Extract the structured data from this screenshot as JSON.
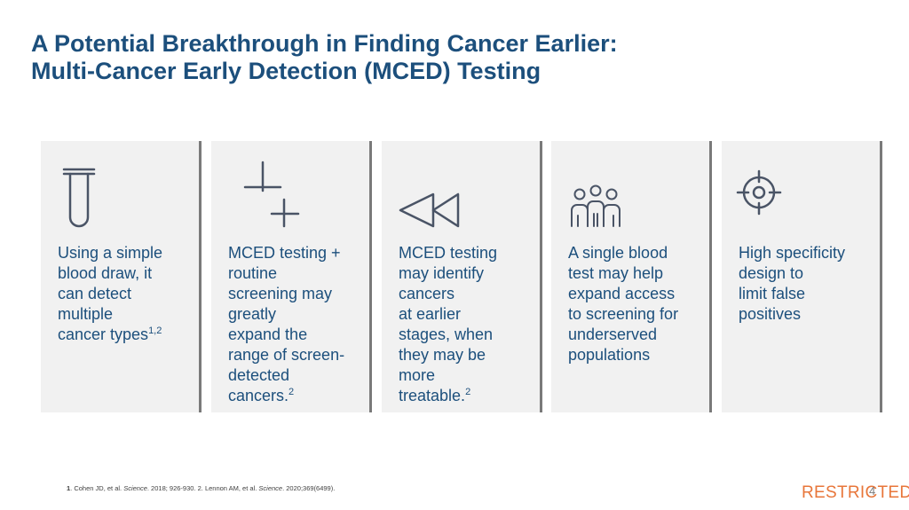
{
  "slide": {
    "title_line1": "A Potential Breakthrough in Finding Cancer Earlier:",
    "title_line2": "Multi-Cancer Early Detection (MCED) Testing"
  },
  "cards": [
    {
      "icon": "test-tube-icon",
      "lines": [
        "Using a simple",
        "blood draw, it",
        "can detect",
        "multiple",
        "cancer types"
      ],
      "superscript": "1,2"
    },
    {
      "icon": "plus-plus-icon",
      "lines": [
        "MCED testing +",
        "routine",
        "screening may",
        "greatly",
        "expand the",
        "range of screen-",
        "detected",
        "cancers."
      ],
      "superscript": "2"
    },
    {
      "icon": "rewind-icon",
      "lines": [
        "MCED testing",
        "may identify",
        "cancers",
        "at earlier",
        "stages, when",
        "they may be",
        "more",
        "treatable."
      ],
      "superscript": "2"
    },
    {
      "icon": "people-group-icon",
      "lines": [
        "A single blood",
        "test may help",
        "expand access",
        "to screening for",
        "underserved",
        "populations"
      ],
      "superscript": ""
    },
    {
      "icon": "crosshair-target-icon",
      "lines": [
        "High specificity",
        "design to",
        "limit false",
        "positives"
      ],
      "superscript": ""
    }
  ],
  "footnote": {
    "num1": "1",
    "ref1_authors": ". Cohen JD, et al. ",
    "ref1_journal": "Science",
    "ref1_rest": ". 2018; 926-930. 2. Lennon AM, et al. ",
    "ref2_journal": "Science",
    "ref2_rest": ". 2020;369(6499)."
  },
  "classification_label": "RESTRICTED",
  "page_number": "4",
  "colors": {
    "title": "#1c4f7c",
    "body_text": "#1c4f7c",
    "card_bg": "#f1f1f1",
    "card_border": "#7a7a7a",
    "icon_stroke": "#4a5466",
    "restricted": "#e8763a"
  }
}
